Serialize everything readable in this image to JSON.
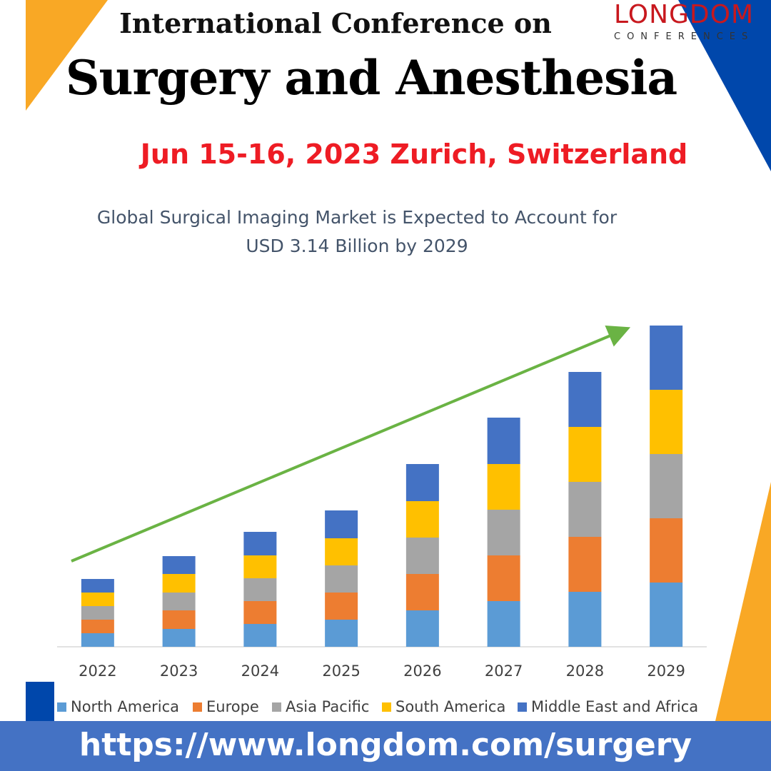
{
  "header": {
    "title_line1": "International Conference on",
    "title_line2": "Surgery and Anesthesia",
    "event_info": "Jun 15-16, 2023  Zurich, Switzerland"
  },
  "logo": {
    "brand": "LONGDOM",
    "sub": "CONFERENCES"
  },
  "footer": {
    "url": "https://www.longdom.com/surgery"
  },
  "colors": {
    "accent_orange": "#f9a825",
    "accent_blue": "#0047ab",
    "title_red": "#ee1c24",
    "footer_blue": "#4472c4",
    "trend_arrow": "#6ab344"
  },
  "chart_data": {
    "type": "bar",
    "stacked": true,
    "title": "Global Surgical Imaging Market is Expected to Account for USD 3.14 Billion by 2029",
    "title_lines": [
      "Global Surgical Imaging Market is Expected to Account for",
      "USD 3.14 Billion by 2029"
    ],
    "categories": [
      "2022",
      "2023",
      "2024",
      "2025",
      "2026",
      "2027",
      "2028",
      "2029"
    ],
    "series": [
      {
        "name": "North America",
        "color": "#5b9bd5",
        "values": [
          19,
          25,
          32,
          38,
          51,
          64,
          77,
          90
        ]
      },
      {
        "name": "Europe",
        "color": "#ed7d31",
        "values": [
          19,
          26,
          32,
          38,
          51,
          64,
          77,
          90
        ]
      },
      {
        "name": "Asia Pacific",
        "color": "#a5a5a5",
        "values": [
          19,
          25,
          32,
          38,
          51,
          64,
          77,
          90
        ]
      },
      {
        "name": "South America",
        "color": "#ffc000",
        "values": [
          19,
          26,
          32,
          38,
          51,
          64,
          77,
          90
        ]
      },
      {
        "name": "Middle East and Africa",
        "color": "#4472c4",
        "values": [
          19,
          25,
          33,
          39,
          52,
          65,
          77,
          90
        ]
      }
    ],
    "ylim": [
      0,
      450
    ],
    "grid": false,
    "legend_position": "bottom",
    "trend_arrow": true
  }
}
